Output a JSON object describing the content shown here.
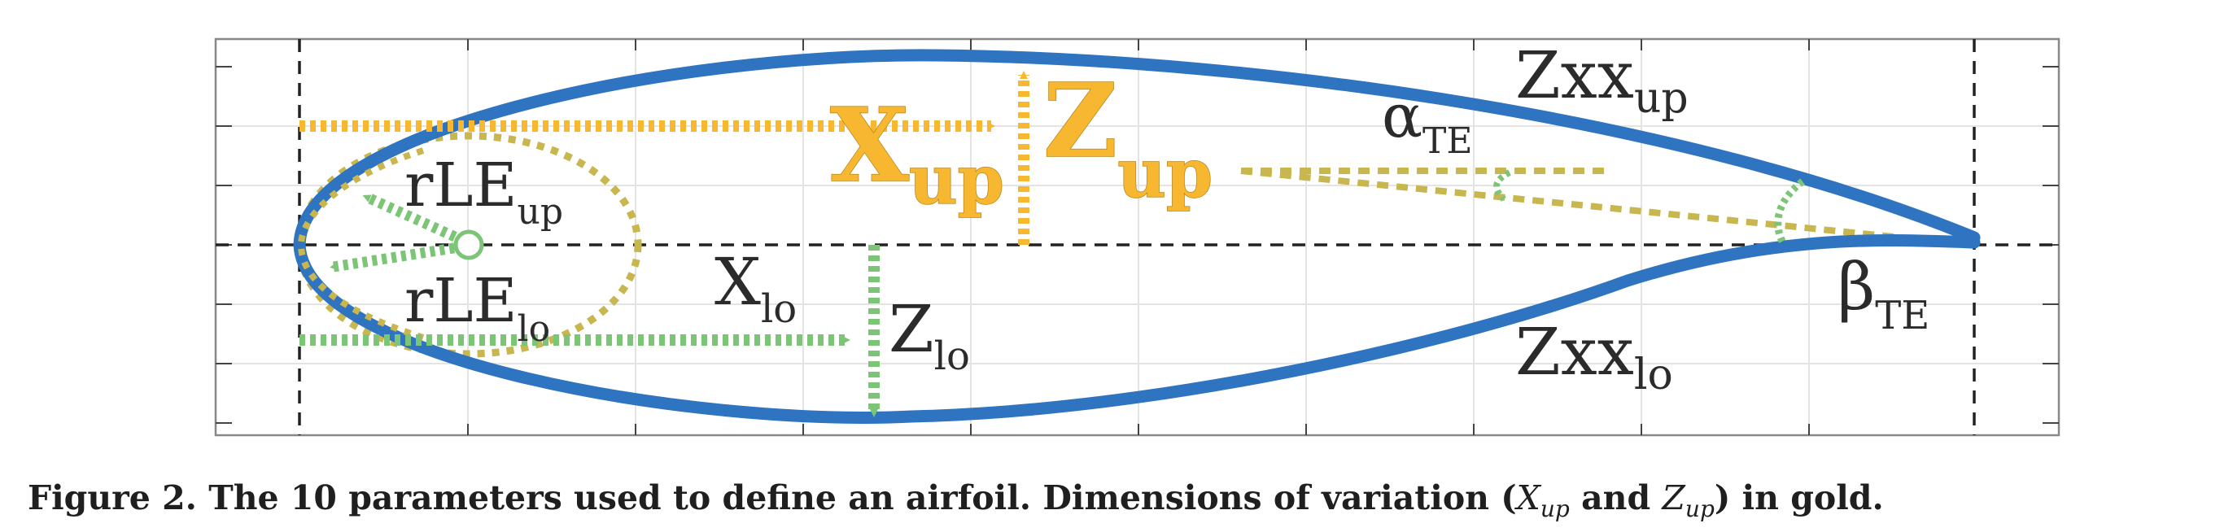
{
  "labels": {
    "x_up": "X",
    "x_up_sub": "up",
    "z_up": "Z",
    "z_up_sub": "up",
    "zxx_up": "Zxx",
    "zxx_up_sub": "up",
    "alpha_te": "α",
    "alpha_te_sub": "TE",
    "rle_up": "rLE",
    "rle_up_sub": "up",
    "rle_lo": "rLE",
    "rle_lo_sub": "lo",
    "x_lo": "X",
    "x_lo_sub": "lo",
    "z_lo": "Z",
    "z_lo_sub": "lo",
    "zxx_lo": "Zxx",
    "zxx_lo_sub": "lo",
    "beta_te": "β",
    "beta_te_sub": "TE"
  },
  "caption": {
    "prefix": "Figure 2.  The 10 parameters used to define an airfoil. Dimensions of variation (",
    "x": "X",
    "x_sub": "up",
    "and": " and ",
    "z": "Z",
    "z_sub": "up",
    "suffix": ") in gold."
  },
  "colors": {
    "airfoil": "#2f74c0",
    "gold": "#f7b731",
    "olive": "#c8b64f",
    "green": "#7cc576",
    "axis": "#333333"
  }
}
